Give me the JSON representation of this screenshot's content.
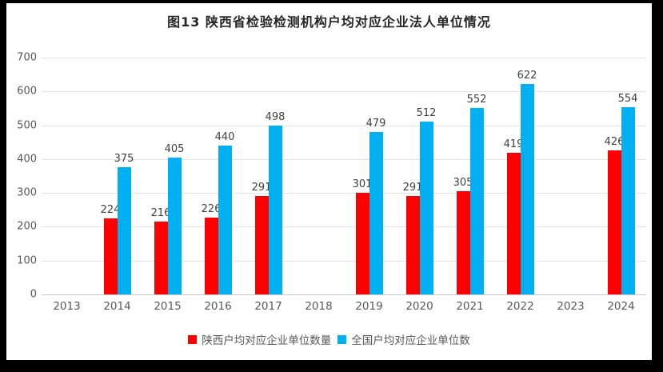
{
  "frame": {
    "background": "#000000",
    "panel_background": "#ffffff"
  },
  "chart_data": {
    "type": "bar",
    "title": "图13  陕西省检验检测机构户均对应企业法人单位情况",
    "categories": [
      "2013",
      "2014",
      "2015",
      "2016",
      "2017",
      "2018",
      "2019",
      "2020",
      "2021",
      "2022",
      "2023",
      "2024"
    ],
    "series": [
      {
        "name": "陕西户均对应企业单位数量",
        "color": "#ff0000",
        "values": [
          null,
          224,
          216,
          226,
          291,
          null,
          301,
          291,
          305,
          419,
          null,
          426
        ]
      },
      {
        "name": "全国户均对应企业单位数",
        "color": "#00b0f0",
        "values": [
          null,
          375,
          405,
          440,
          498,
          null,
          479,
          512,
          552,
          622,
          null,
          554
        ]
      }
    ],
    "ylim": [
      0,
      700
    ],
    "yticks": [
      0,
      100,
      200,
      300,
      400,
      500,
      600,
      700
    ],
    "grid": "horizontal",
    "legend_position": "bottom",
    "xlabel": "",
    "ylabel": ""
  }
}
